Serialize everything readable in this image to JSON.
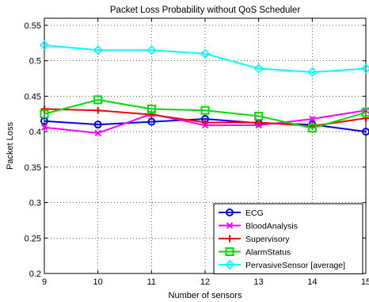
{
  "chart_data": {
    "type": "line",
    "title": "Packet Loss Probability without QoS Scheduler",
    "xlabel": "Number of sensors",
    "ylabel": "Packet Loss",
    "x": [
      9,
      10,
      11,
      12,
      13,
      14,
      15
    ],
    "xlim": [
      9,
      15
    ],
    "ylim": [
      0.2,
      0.56
    ],
    "xticks": [
      "9",
      "10",
      "11",
      "12",
      "13",
      "14",
      "15"
    ],
    "yticks": [
      "0.2",
      "0.25",
      "0.3",
      "0.35",
      "0.4",
      "0.45",
      "0.5",
      "0.55"
    ],
    "ytick_values": [
      0.2,
      0.25,
      0.3,
      0.35,
      0.4,
      0.45,
      0.5,
      0.55
    ],
    "grid": true,
    "legend_position": "bottom-right",
    "series": [
      {
        "name": "ECG",
        "color": "#0000ff",
        "marker": "circle",
        "values": [
          0.415,
          0.41,
          0.414,
          0.418,
          0.412,
          0.41,
          0.4
        ]
      },
      {
        "name": "BloodAnalysis",
        "color": "#ff00ff",
        "marker": "x",
        "values": [
          0.406,
          0.398,
          0.425,
          0.409,
          0.409,
          0.418,
          0.43
        ]
      },
      {
        "name": "Supervisory",
        "color": "#ff0000",
        "marker": "plus",
        "values": [
          0.432,
          0.43,
          0.424,
          0.413,
          0.413,
          0.408,
          0.419
        ]
      },
      {
        "name": "AlarmStatus",
        "color": "#00dd00",
        "marker": "square",
        "values": [
          0.425,
          0.445,
          0.432,
          0.43,
          0.422,
          0.405,
          0.427
        ]
      },
      {
        "name": "PervasiveSensor [average]",
        "color": "#00ffff",
        "marker": "diamond",
        "values": [
          0.522,
          0.515,
          0.515,
          0.51,
          0.489,
          0.484,
          0.489
        ]
      }
    ]
  }
}
